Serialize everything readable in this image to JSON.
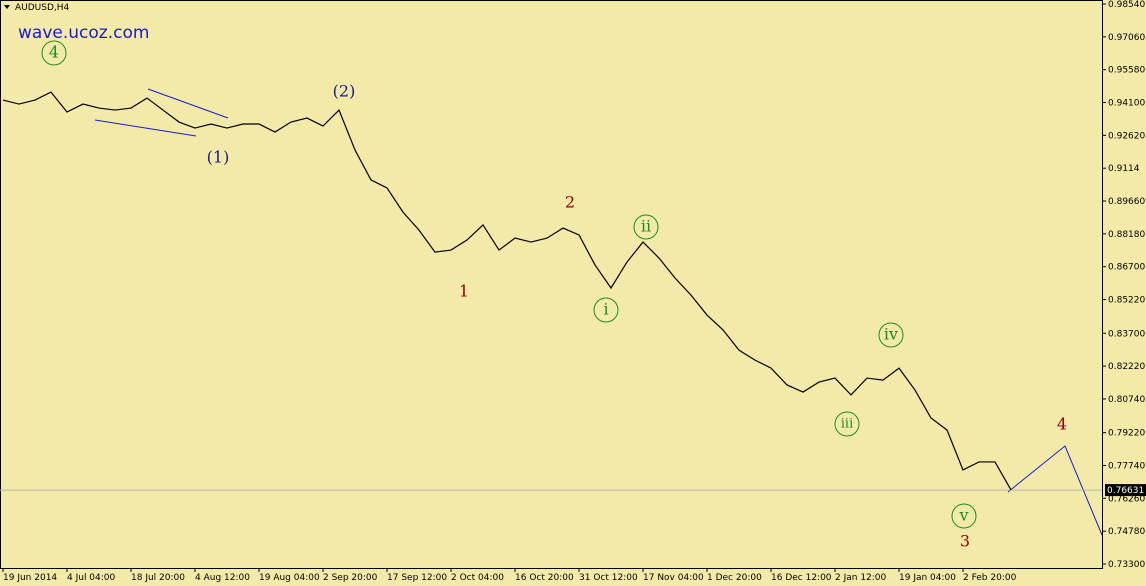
{
  "chart_data": {
    "type": "line",
    "title": "AUDUSD,H4",
    "subtitle": "wave.ucoz.com",
    "categories": [
      "19 Jun 2014",
      null,
      null,
      null,
      "4 Jul 04:00",
      null,
      null,
      null,
      "18 Jul 20:00",
      null,
      null,
      null,
      "4 Aug 12:00",
      null,
      null,
      null,
      "19 Aug 04:00",
      null,
      null,
      null,
      "2 Sep 20:00",
      null,
      null,
      null,
      "17 Sep 12:00",
      null,
      null,
      null,
      "2 Oct 04:00",
      null,
      null,
      null,
      "16 Oct 20:00",
      null,
      null,
      null,
      "31 Oct 12:00",
      null,
      null,
      null,
      "17 Nov 04:00",
      null,
      null,
      null,
      "1 Dec 20:00",
      null,
      null,
      null,
      "16 Dec 12:00",
      null,
      null,
      null,
      "2 Jan 12:00",
      null,
      null,
      null,
      "19 Jan 04:00",
      null,
      null,
      null,
      "2 Feb 20:00",
      null,
      null,
      null,
      null,
      null,
      null,
      null,
      null
    ],
    "series": [
      {
        "name": "AUDUSD",
        "color": "#000000",
        "values": [
          0.9421,
          0.9403,
          0.9421,
          0.9457,
          0.9367,
          0.9403,
          0.9385,
          0.9376,
          0.9385,
          0.943,
          0.9376,
          0.9322,
          0.9295,
          0.9313,
          0.9295,
          0.9313,
          0.9313,
          0.9277,
          0.9322,
          0.934,
          0.9304,
          0.9376,
          0.9196,
          0.9061,
          0.9025,
          0.8916,
          0.8835,
          0.8736,
          0.8745,
          0.879,
          0.8858,
          0.8745,
          0.8799,
          0.8781,
          0.8799,
          0.8844,
          0.8813,
          0.8678,
          0.8574,
          0.8691,
          0.8781,
          0.8709,
          0.8619,
          0.8542,
          0.8452,
          0.8385,
          0.8294,
          0.8249,
          0.8213,
          0.8137,
          0.8105,
          0.815,
          0.8168,
          0.8092,
          0.8168,
          0.8159,
          0.8213,
          0.8114,
          0.7988,
          0.7934,
          0.7754,
          0.779,
          0.779,
          0.7664,
          null,
          null,
          null,
          null,
          null
        ]
      }
    ],
    "ylim": [
      0.733,
      0.9854
    ],
    "yticks": [
      {
        "value": 0.9854,
        "label": "0.98540"
      },
      {
        "value": 0.9706,
        "label": "0.97060"
      },
      {
        "value": 0.9558,
        "label": "0.95580"
      },
      {
        "value": 0.941,
        "label": "0.94100"
      },
      {
        "value": 0.9262,
        "label": "0.92620"
      },
      0.9114,
      {
        "value": 0.8966,
        "label": "0.89660"
      },
      {
        "value": 0.8818,
        "label": "0.88180"
      },
      {
        "value": 0.867,
        "label": "0.86700"
      },
      {
        "value": 0.8522,
        "label": "0.85220"
      },
      {
        "value": 0.837,
        "label": "0.83700"
      },
      {
        "value": 0.8222,
        "label": "0.82220"
      },
      {
        "value": 0.8074,
        "label": "0.80740"
      },
      {
        "value": 0.7922,
        "label": "0.79220"
      },
      {
        "value": 0.7774,
        "label": "0.77740"
      },
      {
        "value": 0.7626,
        "label": "0.76260"
      },
      {
        "value": 0.7478,
        "label": "0.74780"
      },
      {
        "value": 0.733,
        "label": "0.73300"
      }
    ],
    "current_price": 0.76631,
    "annotations": [
      "4",
      "(1)",
      "(2)",
      "1",
      "2",
      "3",
      "4",
      "i",
      "ii",
      "iii",
      "iv",
      "v"
    ]
  }
}
